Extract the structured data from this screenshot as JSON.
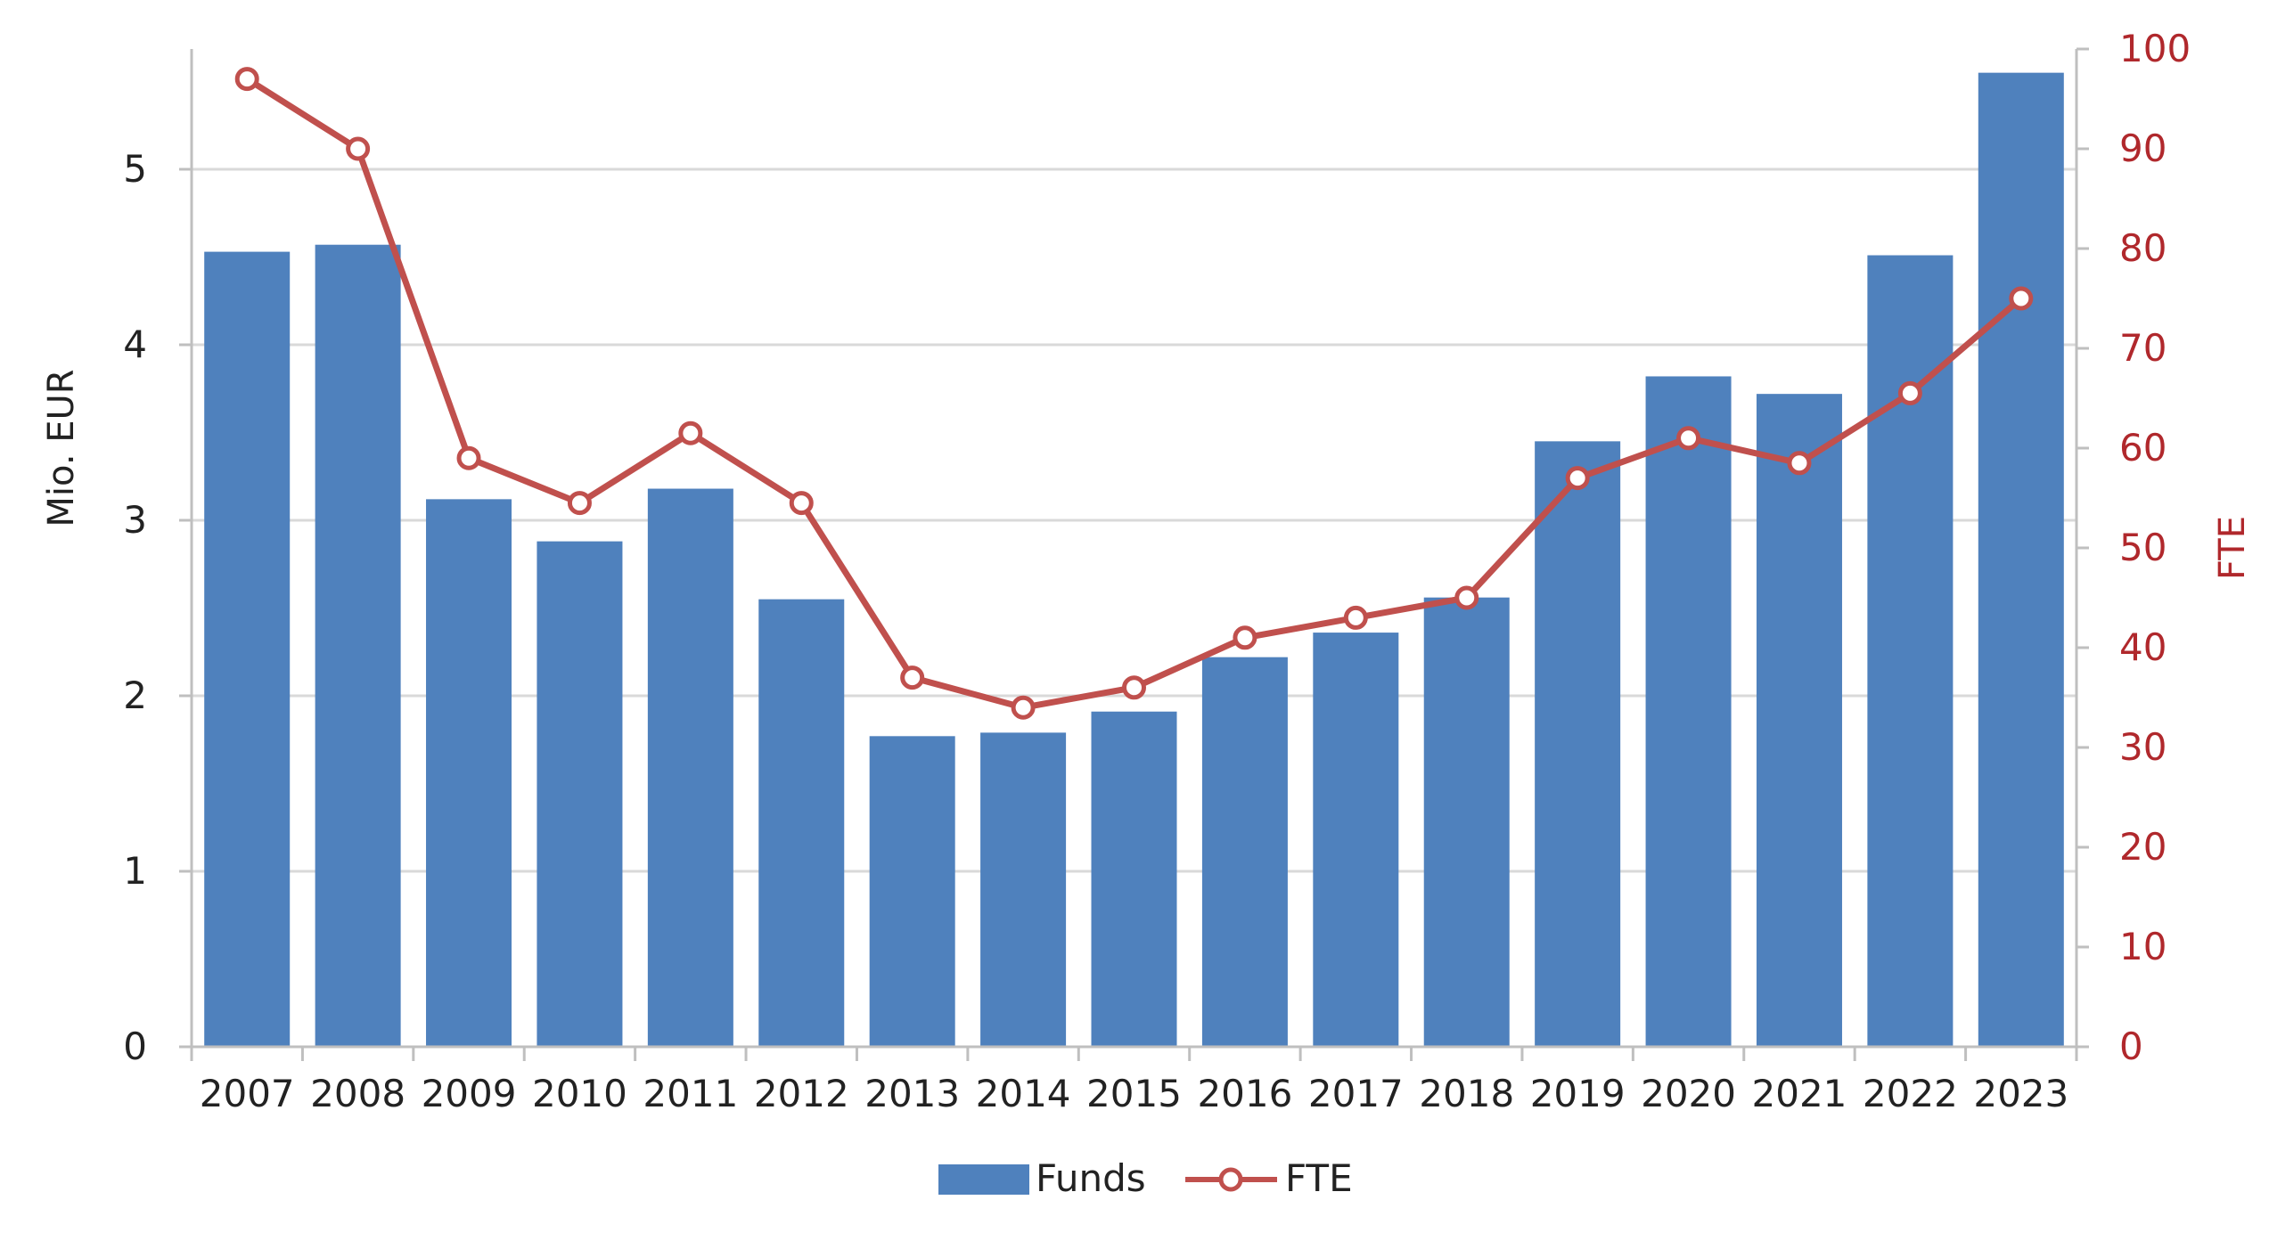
{
  "chart_data": {
    "type": "bar",
    "title": "",
    "categories": [
      "2007",
      "2008",
      "2009",
      "2010",
      "2011",
      "2012",
      "2013",
      "2014",
      "2015",
      "2016",
      "2017",
      "2018",
      "2019",
      "2020",
      "2021",
      "2022",
      "2023"
    ],
    "series": [
      {
        "name": "Funds",
        "type": "bar",
        "axis": "left",
        "color": "#4F81BD",
        "values": [
          4.53,
          4.57,
          3.12,
          2.88,
          3.18,
          2.55,
          1.77,
          1.79,
          1.91,
          2.22,
          2.36,
          2.56,
          3.45,
          3.82,
          3.72,
          4.51,
          5.55
        ]
      },
      {
        "name": "FTE",
        "type": "line",
        "axis": "right",
        "color": "#C0504D",
        "marker": "hollow-circle",
        "values": [
          97,
          90,
          59,
          54.5,
          61.5,
          54.5,
          37,
          34,
          36,
          41,
          43,
          45,
          57,
          61,
          58.5,
          65.5,
          75
        ]
      }
    ],
    "y_left": {
      "label": "Mio. EUR",
      "ylim": [
        0,
        5.7
      ],
      "ticks": [
        "0",
        "1",
        "2",
        "3",
        "4",
        "5"
      ],
      "tick_values": [
        0,
        1,
        2,
        3,
        4,
        5
      ]
    },
    "y_right": {
      "label": "FTE",
      "ylim": [
        0,
        100
      ],
      "ticks": [
        "0",
        "10",
        "20",
        "30",
        "40",
        "50",
        "60",
        "70",
        "80",
        "90",
        "100"
      ],
      "tick_values": [
        0,
        10,
        20,
        30,
        40,
        50,
        60,
        70,
        80,
        90,
        100
      ],
      "color": "#B0282C"
    },
    "grid": true,
    "legend": {
      "position": "bottom",
      "items": [
        "Funds",
        "FTE"
      ]
    }
  }
}
